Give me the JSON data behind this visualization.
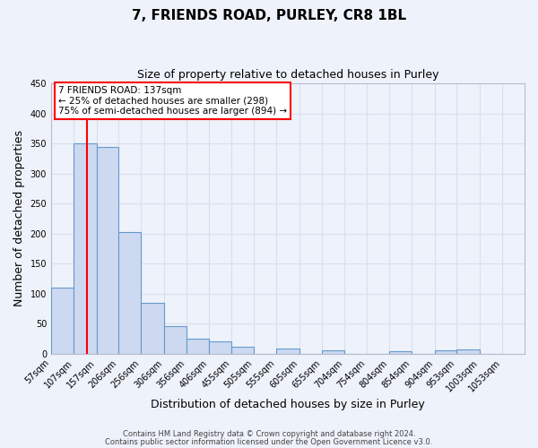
{
  "title": "7, FRIENDS ROAD, PURLEY, CR8 1BL",
  "subtitle": "Size of property relative to detached houses in Purley",
  "xlabel": "Distribution of detached houses by size in Purley",
  "ylabel": "Number of detached properties",
  "bar_left_edges": [
    57,
    107,
    157,
    206,
    256,
    306,
    356,
    406,
    455,
    505,
    555,
    605,
    655,
    704,
    754,
    804,
    854,
    904,
    953,
    1003
  ],
  "bar_widths": [
    50,
    50,
    49,
    50,
    50,
    50,
    50,
    49,
    50,
    50,
    50,
    50,
    49,
    50,
    50,
    50,
    50,
    49,
    50,
    50
  ],
  "bar_heights": [
    110,
    350,
    344,
    203,
    85,
    46,
    25,
    21,
    12,
    0,
    9,
    0,
    6,
    0,
    0,
    5,
    0,
    6,
    7,
    0
  ],
  "bar_color": "#ccd9f0",
  "bar_edge_color": "#6699cc",
  "tick_labels": [
    "57sqm",
    "107sqm",
    "157sqm",
    "206sqm",
    "256sqm",
    "306sqm",
    "356sqm",
    "406sqm",
    "455sqm",
    "505sqm",
    "555sqm",
    "605sqm",
    "655sqm",
    "704sqm",
    "754sqm",
    "804sqm",
    "854sqm",
    "904sqm",
    "953sqm",
    "1003sqm",
    "1053sqm"
  ],
  "ylim": [
    0,
    450
  ],
  "yticks": [
    0,
    50,
    100,
    150,
    200,
    250,
    300,
    350,
    400,
    450
  ],
  "red_line_x": 137,
  "annotation_line1": "7 FRIENDS ROAD: 137sqm",
  "annotation_line2": "← 25% of detached houses are smaller (298)",
  "annotation_line3": "75% of semi-detached houses are larger (894) →",
  "footer_line1": "Contains HM Land Registry data © Crown copyright and database right 2024.",
  "footer_line2": "Contains public sector information licensed under the Open Government Licence v3.0.",
  "background_color": "#eef2fa",
  "grid_color": "#d8dff0",
  "xlim_min": 57,
  "xlim_max": 1103
}
